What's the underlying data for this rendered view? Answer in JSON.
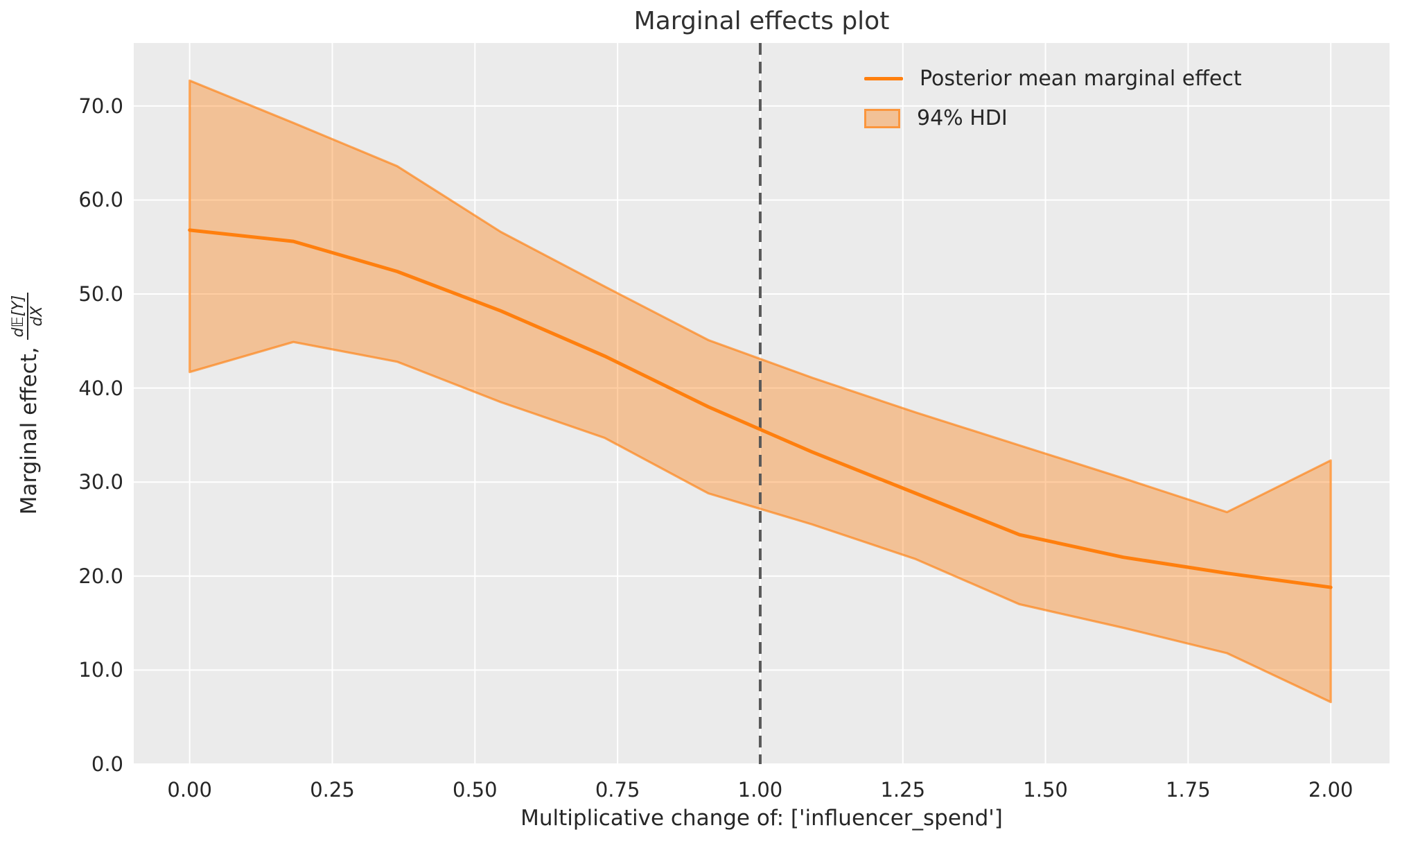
{
  "title": "Marginal effects plot",
  "x_axis": {
    "label": "Multiplicative change of: ['influencer_spend']",
    "tick_labels": [
      "0.00",
      "0.25",
      "0.50",
      "0.75",
      "1.00",
      "1.25",
      "1.50",
      "1.75",
      "2.00"
    ],
    "tick_values": [
      0,
      0.25,
      0.5,
      0.75,
      1.0,
      1.25,
      1.5,
      1.75,
      2.0
    ]
  },
  "y_axis": {
    "label_prefix": "Marginal effect,",
    "label_frac_numerator": "d𝔼[Y]",
    "label_frac_denominator": "dX",
    "tick_labels": [
      "0.0",
      "10.0",
      "20.0",
      "30.0",
      "40.0",
      "50.0",
      "60.0",
      "70.0"
    ],
    "tick_values": [
      0,
      10,
      20,
      30,
      40,
      50,
      60,
      70
    ]
  },
  "legend": {
    "line_label": "Posterior mean marginal effect",
    "patch_label": "94% HDI"
  },
  "colors": {
    "line": "#ff7f0e",
    "band_fill": "rgba(255,127,14,0.38)",
    "band_edge": "rgba(255,127,14,0.65)",
    "axes_background": "#ebebeb",
    "grid": "#ffffff",
    "reference_line": "#595959",
    "text": "#262626"
  },
  "chart_data": {
    "type": "line",
    "title": "Marginal effects plot",
    "xlabel": "Multiplicative change of: ['influencer_spend']",
    "ylabel": "Marginal effect, d𝔼[Y]/dX",
    "xlim": [
      -0.098,
      2.103
    ],
    "ylim": [
      0,
      76.7
    ],
    "grid": true,
    "legend_position": "upper right",
    "reference_line_x": 1.0,
    "x": [
      0.0,
      0.1818,
      0.3636,
      0.5455,
      0.7273,
      0.9091,
      1.0909,
      1.2727,
      1.4545,
      1.6364,
      1.8182,
      2.0
    ],
    "series": [
      {
        "name": "Posterior mean marginal effect",
        "values": [
          56.8,
          55.6,
          52.4,
          48.2,
          43.4,
          38.0,
          33.2,
          28.8,
          24.4,
          22.0,
          20.3,
          18.8
        ]
      },
      {
        "name": "94% HDI lower",
        "values": [
          41.7,
          44.9,
          42.8,
          38.5,
          34.7,
          28.8,
          25.5,
          21.8,
          17.0,
          14.5,
          11.8,
          6.6
        ]
      },
      {
        "name": "94% HDI upper",
        "values": [
          72.7,
          68.2,
          63.6,
          56.6,
          50.8,
          45.1,
          41.1,
          37.4,
          33.9,
          30.4,
          26.8,
          32.3
        ]
      }
    ]
  }
}
